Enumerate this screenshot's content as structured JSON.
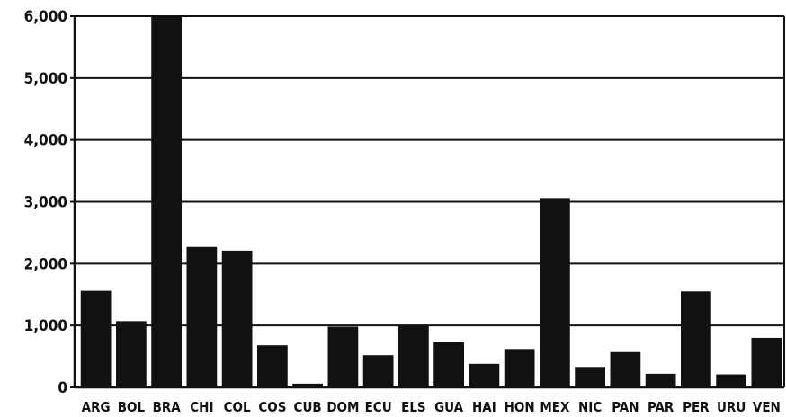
{
  "chart_data": {
    "type": "bar",
    "title": "",
    "xlabel": "",
    "ylabel": "",
    "categories": [
      "ARG",
      "BOL",
      "BRA",
      "CHI",
      "COL",
      "COS",
      "CUB",
      "DOM",
      "ECU",
      "ELS",
      "GUA",
      "HAI",
      "HON",
      "MEX",
      "NIC",
      "PAN",
      "PAR",
      "PER",
      "URU",
      "VEN"
    ],
    "values": [
      1560,
      1070,
      6000,
      2270,
      2210,
      680,
      60,
      980,
      520,
      1000,
      730,
      380,
      620,
      3060,
      330,
      570,
      220,
      1550,
      210,
      800
    ],
    "ylim": [
      0,
      6000
    ],
    "yticks": [
      0,
      1000,
      2000,
      3000,
      4000,
      5000,
      6000
    ],
    "ytick_labels": [
      "0",
      "1,000",
      "2,000",
      "3,000",
      "4,000",
      "5,000",
      "6,000"
    ],
    "grid": true,
    "legend": "none",
    "bar_color": "#111111",
    "grid_color": "#111111"
  }
}
